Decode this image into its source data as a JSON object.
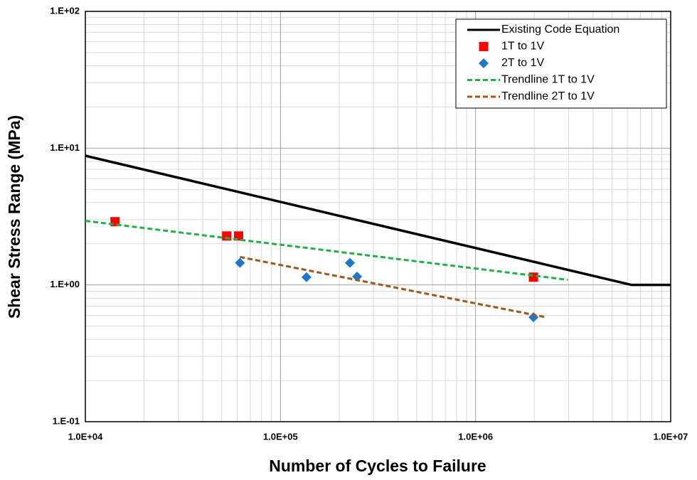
{
  "chart_data": {
    "type": "line",
    "xlabel": "Number of Cycles to Failure",
    "ylabel": "Shear Stress Range (MPa)",
    "xscale": "log",
    "yscale": "log",
    "grid": true,
    "minor_grid": true,
    "legend": "upper right",
    "xlim": [
      10000,
      10000000
    ],
    "ylim": [
      0.1,
      100
    ],
    "xticks": [
      {
        "value": 10000,
        "label": "1.0E+04"
      },
      {
        "value": 100000,
        "label": "1.0E+05"
      },
      {
        "value": 1000000,
        "label": "1.0E+06"
      },
      {
        "value": 10000000,
        "label": "1.0E+07"
      }
    ],
    "yticks": [
      {
        "value": 0.1,
        "label": "1.E-01"
      },
      {
        "value": 1,
        "label": "1.E+00"
      },
      {
        "value": 10,
        "label": "1.E+01"
      },
      {
        "value": 100,
        "label": "1.E+02"
      }
    ],
    "series": [
      {
        "name": "Existing Code Equation",
        "color": "#000000",
        "mode": "line",
        "dash": "solid",
        "x": [
          10000,
          6300000,
          10000000
        ],
        "values": [
          8.8,
          1.0,
          1.0
        ]
      },
      {
        "name": "1T to 1V",
        "color": "#ff0000",
        "mode": "markers",
        "marker": "square",
        "x": [
          14200,
          53000,
          61000,
          1980000
        ],
        "values": [
          2.9,
          2.28,
          2.28,
          1.14
        ]
      },
      {
        "name": "2T to 1V",
        "color": "#1f77c8",
        "mode": "markers",
        "marker": "diamond",
        "x": [
          62000,
          136000,
          227000,
          247000,
          1980000
        ],
        "values": [
          1.45,
          1.14,
          1.45,
          1.15,
          0.58
        ]
      },
      {
        "name": "Trendline 1T to 1V",
        "color": "#22b04b",
        "mode": "line",
        "dash": "dashed",
        "x": [
          10000,
          2970000
        ],
        "values": [
          2.94,
          1.09
        ]
      },
      {
        "name": "Trendline 2T to 1V",
        "color": "#9c5a1e",
        "mode": "line",
        "dash": "dashed",
        "x": [
          62000,
          2300000
        ],
        "values": [
          1.6,
          0.58
        ]
      }
    ]
  }
}
